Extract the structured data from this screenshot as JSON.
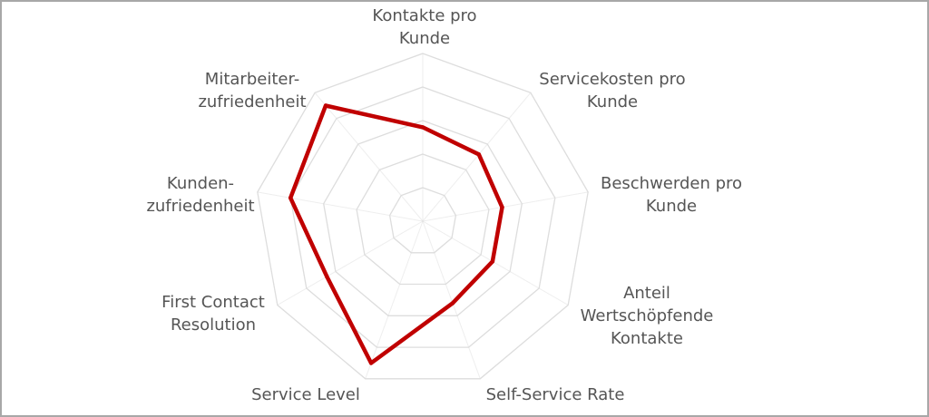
{
  "chart_data": {
    "type": "radar",
    "title": "",
    "axes": [
      {
        "label_lines": [
          "Kontakte pro",
          "Kunde"
        ]
      },
      {
        "label_lines": [
          "Servicekosten pro",
          "Kunde"
        ]
      },
      {
        "label_lines": [
          "Beschwerden pro",
          "Kunde"
        ]
      },
      {
        "label_lines": [
          "Anteil",
          "Wertschöpfende",
          "Kontakte"
        ]
      },
      {
        "label_lines": [
          "Self-Service Rate"
        ]
      },
      {
        "label_lines": [
          "Service Level"
        ]
      },
      {
        "label_lines": [
          "First Contact",
          "Resolution"
        ]
      },
      {
        "label_lines": [
          "Kunden-",
          "zufriedenheit"
        ]
      },
      {
        "label_lines": [
          "Mitarbeiter-",
          "zufriedenheit"
        ]
      }
    ],
    "rlim": [
      0,
      5
    ],
    "rings": 5,
    "grid": true,
    "legend": "none",
    "series": [
      {
        "values": [
          2.8,
          2.6,
          2.4,
          2.4,
          2.6,
          4.5,
          3.3,
          4.0,
          4.5
        ],
        "color": "#c00000"
      }
    ],
    "grid_color": "#dddddd",
    "label_color": "#555555"
  }
}
